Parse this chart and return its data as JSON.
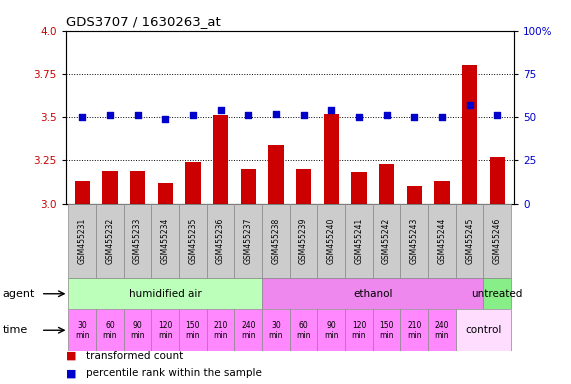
{
  "title": "GDS3707 / 1630263_at",
  "samples": [
    "GSM455231",
    "GSM455232",
    "GSM455233",
    "GSM455234",
    "GSM455235",
    "GSM455236",
    "GSM455237",
    "GSM455238",
    "GSM455239",
    "GSM455240",
    "GSM455241",
    "GSM455242",
    "GSM455243",
    "GSM455244",
    "GSM455245",
    "GSM455246"
  ],
  "transformed_counts": [
    3.13,
    3.19,
    3.19,
    3.12,
    3.24,
    3.51,
    3.2,
    3.34,
    3.2,
    3.52,
    3.18,
    3.23,
    3.1,
    3.13,
    3.8,
    3.27
  ],
  "percentile_ranks": [
    50,
    51,
    51,
    49,
    51,
    54,
    51,
    52,
    51,
    54,
    50,
    51,
    50,
    50,
    57,
    51
  ],
  "ylim_left": [
    3.0,
    4.0
  ],
  "ylim_right": [
    0,
    100
  ],
  "yticks_left": [
    3.0,
    3.25,
    3.5,
    3.75,
    4.0
  ],
  "yticks_right": [
    0,
    25,
    50,
    75,
    100
  ],
  "bar_color": "#cc0000",
  "dot_color": "#0000cc",
  "grid_color": "#000000",
  "agent_groups": [
    {
      "label": "humidified air",
      "start": 0,
      "end": 7,
      "color": "#bbffbb"
    },
    {
      "label": "ethanol",
      "start": 7,
      "end": 15,
      "color": "#ee88ee"
    },
    {
      "label": "untreated",
      "start": 15,
      "end": 16,
      "color": "#88ee88"
    }
  ],
  "time_labels": [
    "30\nmin",
    "60\nmin",
    "90\nmin",
    "120\nmin",
    "150\nmin",
    "210\nmin",
    "240\nmin",
    "30\nmin",
    "60\nmin",
    "90\nmin",
    "120\nmin",
    "150\nmin",
    "210\nmin",
    "240\nmin"
  ],
  "time_color": "#ff88ff",
  "time_control_label": "control",
  "time_control_color": "#ffddff",
  "agent_label": "agent",
  "time_label": "time",
  "legend_bar_label": "transformed count",
  "legend_dot_label": "percentile rank within the sample",
  "tick_label_color_left": "#cc0000",
  "tick_label_color_right": "#0000cc",
  "sample_box_color": "#cccccc",
  "sample_box_edge": "#888888"
}
